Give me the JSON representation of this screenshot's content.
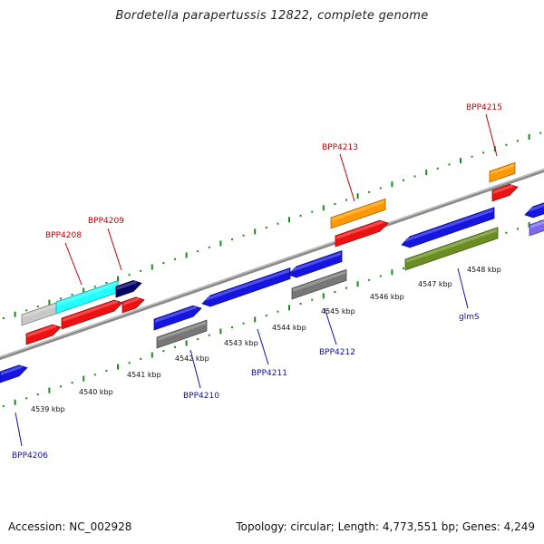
{
  "title": "Bordetella parapertussis 12822, complete genome",
  "footer": {
    "accession": "Accession: NC_002928",
    "summary": "Topology: circular; Length: 4,773,551 bp; Genes: 4,249"
  },
  "colors": {
    "backbone": "#8a8a8a",
    "tick": "#1a8a1a",
    "top_label": "#c00000",
    "bottom_label": "#1010a0",
    "blue": "#1515e0",
    "red": "#ee1111",
    "orange": "#ff9900",
    "cyan": "#22ffff",
    "navy": "#000066",
    "gray": "#777777",
    "lightgray": "#c8c8c8",
    "olive": "#6b8e23",
    "lavender": "#7b68ee"
  },
  "scale_labels": [
    "4539 kbp",
    "4540 kbp",
    "4541 kbp",
    "4542 kbp",
    "4543 kbp",
    "4544 kbp",
    "4545 kbp",
    "4546 kbp",
    "4547 kbp",
    "4548 kbp"
  ],
  "top_gene_labels": [
    "BPP4208",
    "BPP4209",
    "BPP4213",
    "BPP4215"
  ],
  "bottom_gene_labels": [
    "BPP4206",
    "BPP4210",
    "BPP4211",
    "BPP4212",
    "glmS"
  ]
}
